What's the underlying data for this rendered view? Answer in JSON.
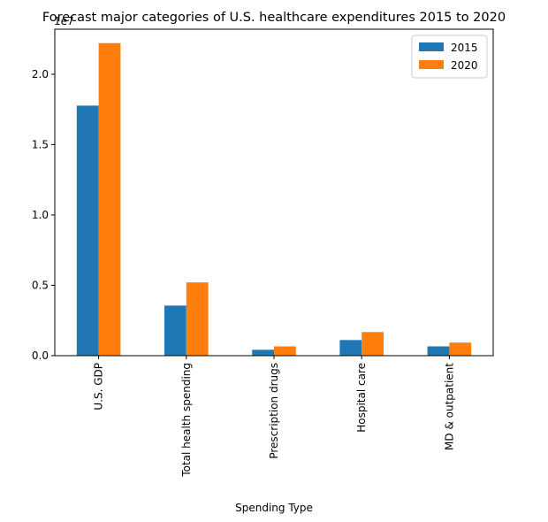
{
  "chart_data": {
    "type": "bar",
    "title": "Forecast major categories of U.S. healthcare expenditures 2015 to 2020",
    "xlabel": "Spending Type",
    "ylabel": "",
    "y_scale_label": "1e7",
    "categories": [
      "U.S. GDP",
      "Total health spending",
      "Prescription drugs",
      "Hospital care",
      "MD & outpatient"
    ],
    "series": [
      {
        "name": "2015",
        "color": "#1f77b4",
        "values": [
          17770000,
          3560000,
          420000,
          1110000,
          660000
        ]
      },
      {
        "name": "2020",
        "color": "#ff7f0e",
        "values": [
          22210000,
          5210000,
          660000,
          1680000,
          930000
        ]
      }
    ],
    "ylim": [
      0,
      23200000
    ],
    "y_ticks": [
      0,
      5000000,
      10000000,
      15000000,
      20000000
    ],
    "y_tick_labels": [
      "0.0",
      "0.5",
      "1.0",
      "1.5",
      "2.0"
    ],
    "grid": false,
    "legend_position": "top-right"
  }
}
